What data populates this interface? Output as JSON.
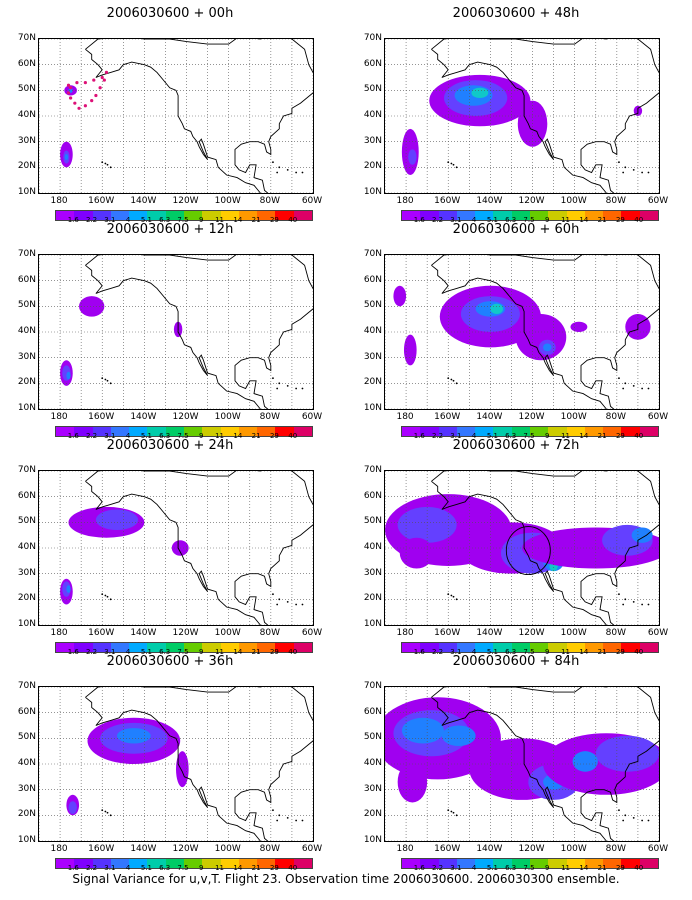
{
  "panels": [
    {
      "title": "2006030600 + 00h",
      "blobs": [
        [
          "d",
          -177,
          25,
          3,
          5
        ],
        [
          "m",
          -177,
          24,
          1.5,
          2.5
        ],
        [
          "b",
          -177,
          24,
          0.8,
          1.2
        ],
        [
          "d",
          -175,
          50,
          3,
          2
        ],
        [
          "b",
          -175,
          50,
          1,
          1
        ]
      ],
      "dots": true,
      "circle": false
    },
    {
      "title": "2006030600 + 12h",
      "blobs": [
        [
          "d",
          -177,
          24,
          3,
          5
        ],
        [
          "m",
          -177,
          24,
          2,
          3
        ],
        [
          "b",
          -176,
          23,
          1,
          1.5
        ],
        [
          "d",
          -165,
          50,
          6,
          4
        ],
        [
          "d",
          -124,
          41,
          2,
          3
        ]
      ],
      "dots": false,
      "circle": false
    },
    {
      "title": "2006030600 + 24h",
      "blobs": [
        [
          "d",
          -177,
          23,
          3,
          5
        ],
        [
          "m",
          -177,
          24,
          2,
          3
        ],
        [
          "b",
          -176,
          24,
          1,
          1.5
        ],
        [
          "d",
          -158,
          50,
          18,
          6
        ],
        [
          "m",
          -153,
          51,
          10,
          4
        ],
        [
          "d",
          -123,
          40,
          4,
          3
        ]
      ],
      "dots": false,
      "circle": false
    },
    {
      "title": "2006030600 + 36h",
      "blobs": [
        [
          "d",
          -174,
          24,
          3,
          4
        ],
        [
          "m",
          -174,
          23,
          2,
          2.5
        ],
        [
          "d",
          -145,
          49,
          22,
          9
        ],
        [
          "m",
          -145,
          50,
          16,
          6
        ],
        [
          "b",
          -145,
          51,
          8,
          3
        ],
        [
          "d",
          -122,
          38,
          3,
          7
        ]
      ],
      "dots": false,
      "circle": false
    },
    {
      "title": "2006030600 + 48h",
      "blobs": [
        [
          "d",
          -178,
          26,
          4,
          9
        ],
        [
          "m",
          -177,
          24,
          2,
          3
        ],
        [
          "d",
          -145,
          46,
          24,
          10
        ],
        [
          "m",
          -147,
          47,
          15,
          7
        ],
        [
          "b",
          -148,
          48,
          9,
          4
        ],
        [
          "c",
          -145,
          49,
          4,
          2
        ],
        [
          "d",
          -120,
          37,
          7,
          9
        ],
        [
          "d",
          -70,
          42,
          2,
          2
        ]
      ],
      "dots": false,
      "circle": false
    },
    {
      "title": "2006030600 + 60h",
      "blobs": [
        [
          "d",
          -183,
          54,
          3,
          4
        ],
        [
          "d",
          -178,
          33,
          3,
          6
        ],
        [
          "d",
          -140,
          46,
          24,
          12
        ],
        [
          "m",
          -140,
          47,
          14,
          7
        ],
        [
          "b",
          -140,
          49,
          7,
          3
        ],
        [
          "c",
          -137,
          49,
          3,
          2
        ],
        [
          "d",
          -116,
          38,
          12,
          9
        ],
        [
          "m",
          -113,
          34,
          4,
          3
        ],
        [
          "b",
          -113,
          34,
          2,
          1.5
        ],
        [
          "d",
          -98,
          42,
          4,
          2
        ],
        [
          "d",
          -70,
          42,
          6,
          5
        ]
      ],
      "dots": false,
      "circle": false
    },
    {
      "title": "2006030600 + 72h",
      "blobs": [
        [
          "d",
          -160,
          47,
          30,
          14
        ],
        [
          "m",
          -170,
          49,
          14,
          7
        ],
        [
          "d",
          -130,
          40,
          25,
          10
        ],
        [
          "m",
          -120,
          38,
          15,
          8
        ],
        [
          "b",
          -110,
          35,
          5,
          4
        ],
        [
          "c",
          -110,
          33,
          2,
          2
        ],
        [
          "d",
          -90,
          40,
          35,
          8
        ],
        [
          "m",
          -75,
          43,
          12,
          6
        ],
        [
          "b",
          -68,
          45,
          5,
          3
        ],
        [
          "d",
          -175,
          38,
          8,
          6
        ]
      ],
      "dots": false,
      "circle": true
    },
    {
      "title": "2006030600 + 84h",
      "blobs": [
        [
          "d",
          -165,
          50,
          30,
          16
        ],
        [
          "m",
          -168,
          52,
          18,
          9
        ],
        [
          "b",
          -172,
          53,
          10,
          5
        ],
        [
          "b",
          -155,
          51,
          8,
          4
        ],
        [
          "d",
          -125,
          38,
          25,
          12
        ],
        [
          "m",
          -110,
          33,
          12,
          7
        ],
        [
          "b",
          -110,
          33,
          5,
          3
        ],
        [
          "d",
          -85,
          40,
          30,
          12
        ],
        [
          "m",
          -75,
          44,
          15,
          7
        ],
        [
          "b",
          -95,
          41,
          6,
          4
        ],
        [
          "d",
          -177,
          33,
          7,
          8
        ]
      ],
      "dots": false,
      "circle": false
    }
  ],
  "axes": {
    "y_labels": [
      "70N",
      "60N",
      "50N",
      "40N",
      "30N",
      "20N",
      "10N"
    ],
    "x_labels": [
      "180",
      "160W",
      "140W",
      "120W",
      "100W",
      "80W",
      "60W"
    ],
    "lon_range": [
      -190,
      -60
    ],
    "lat_range": [
      10,
      70
    ]
  },
  "colorbar": {
    "colors": [
      "#aa00ff",
      "#7f00ff",
      "#5533ff",
      "#3377ff",
      "#00aaff",
      "#00ccaa",
      "#00cc66",
      "#66cc00",
      "#cccc00",
      "#ffcc00",
      "#ff9900",
      "#ff6600",
      "#ff0000",
      "#dd0066"
    ],
    "labels": [
      "1.6",
      "2.2",
      "3.1",
      "4",
      "5.1",
      "6.3",
      "7.5",
      "9",
      "11",
      "14",
      "21",
      "29",
      "40"
    ]
  },
  "shade_colors": {
    "d": "#a000f0",
    "m": "#6440ff",
    "b": "#2080ff",
    "c": "#10c8c8"
  },
  "footer": "Signal Variance for u,v,T. Flight 23. Observation time 2006030600. 2006030300 ensemble."
}
